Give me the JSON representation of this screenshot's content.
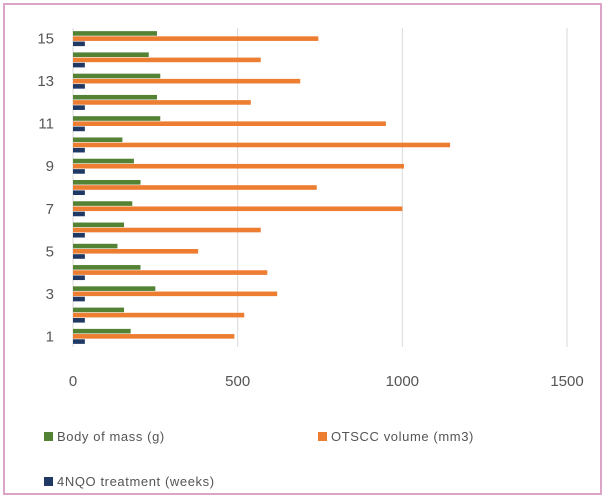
{
  "chart_data": {
    "type": "bar",
    "orientation": "horizontal",
    "categories": [
      1,
      2,
      3,
      4,
      5,
      6,
      7,
      8,
      9,
      10,
      11,
      12,
      13,
      14,
      15
    ],
    "y_tick_labels": [
      "1",
      "3",
      "5",
      "7",
      "9",
      "11",
      "13",
      "15"
    ],
    "x_tick_labels": [
      "0",
      "500",
      "1000",
      "1500"
    ],
    "xlim": [
      0,
      1500
    ],
    "grid": true,
    "legend_position": "bottom",
    "series": [
      {
        "name": "Body of mass (g)",
        "color": "#548235",
        "values": [
          175,
          155,
          250,
          205,
          135,
          155,
          180,
          205,
          185,
          150,
          265,
          255,
          265,
          230,
          255
        ]
      },
      {
        "name": "OTSCC volume (mm3)",
        "color": "#ed7d31",
        "values": [
          490,
          520,
          620,
          590,
          380,
          570,
          1000,
          740,
          1005,
          1145,
          950,
          540,
          690,
          570,
          745
        ]
      },
      {
        "name": "4NQO treatment (weeks)",
        "color": "#1f3864",
        "values": [
          36,
          36,
          36,
          36,
          36,
          36,
          36,
          36,
          36,
          36,
          36,
          36,
          36,
          36,
          36
        ]
      }
    ]
  }
}
